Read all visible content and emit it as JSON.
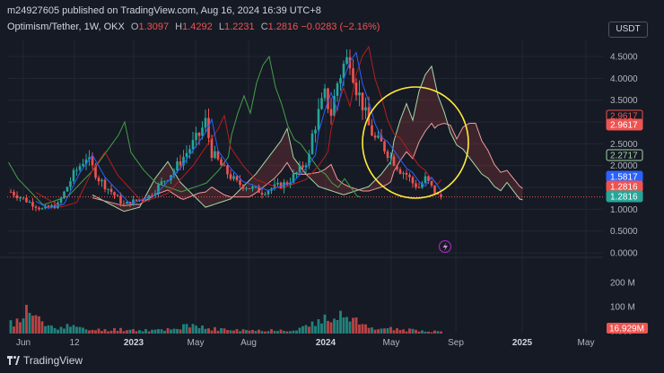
{
  "header": {
    "published_line": "m24927605 published on TradingView.com, Aug 16, 2024 16:39 UTC+8"
  },
  "legend": {
    "symbol": "Optimism/Tether, 1W, OKX",
    "open_label": "O",
    "open": "1.3097",
    "high_label": "H",
    "high": "1.4292",
    "low_label": "L",
    "low": "1.2231",
    "close_label": "C",
    "close": "1.2816",
    "change": "−0.0283 (−2.16%)"
  },
  "currency_button": "USDT",
  "footer": {
    "brand": "TradingView"
  },
  "colors": {
    "background": "#161a25",
    "up": "#26a69a",
    "down": "#ef5350",
    "conversion": "#2962ff",
    "base": "#b71c1c",
    "lagging": "#43a047",
    "span_a": "#a5d6a7",
    "span_b": "#ef9a9a",
    "highlight": "#ffeb3b"
  },
  "chart_data": {
    "type": "candlestick",
    "price_axis": {
      "ticks": [
        "4.5000",
        "4.0000",
        "3.5000",
        "3.0000",
        "2.5000",
        "2.0000",
        "1.5000",
        "1.0000",
        "0.5000",
        "0.0000"
      ]
    },
    "volume_axis": {
      "ticks": [
        "200 M",
        "100 M",
        "0.000"
      ]
    },
    "time_axis": {
      "ticks": [
        "Jun",
        "12",
        "2023",
        "May",
        "Aug",
        "2024",
        "May",
        "Sep",
        "2025",
        "May"
      ]
    },
    "price_labels": [
      {
        "text": "2.9617",
        "style": "outline-red"
      },
      {
        "text": "2.9617",
        "style": "solid-red"
      },
      {
        "text": "2.2717",
        "style": "outline-green"
      },
      {
        "text": "1.5817",
        "style": "solid-blue"
      },
      {
        "text": "1.2816",
        "style": "solid-red"
      },
      {
        "text": "1.2816",
        "style": "solid-green"
      }
    ],
    "volume_label": "16.929M",
    "last_close": 1.2816,
    "annotation": "yellow ellipse around the 2024 decline",
    "close_path": [
      [
        0,
        1.4
      ],
      [
        5,
        1.2
      ],
      [
        10,
        1.0
      ],
      [
        15,
        1.1
      ],
      [
        20,
        1.8
      ],
      [
        24,
        2.2
      ],
      [
        28,
        1.7
      ],
      [
        32,
        1.4
      ],
      [
        36,
        1.1
      ],
      [
        40,
        1.2
      ],
      [
        44,
        1.3
      ],
      [
        48,
        1.6
      ],
      [
        52,
        1.9
      ],
      [
        56,
        2.3
      ],
      [
        60,
        2.7
      ],
      [
        62,
        3.0
      ],
      [
        64,
        2.3
      ],
      [
        68,
        1.9
      ],
      [
        72,
        1.6
      ],
      [
        76,
        1.5
      ],
      [
        80,
        1.4
      ],
      [
        84,
        1.5
      ],
      [
        88,
        1.6
      ],
      [
        92,
        1.9
      ],
      [
        95,
        2.2
      ],
      [
        96,
        2.7
      ],
      [
        98,
        3.2
      ],
      [
        100,
        3.6
      ],
      [
        102,
        3.2
      ],
      [
        104,
        3.9
      ],
      [
        106,
        4.3
      ],
      [
        108,
        4.5
      ],
      [
        110,
        3.8
      ],
      [
        112,
        3.4
      ],
      [
        114,
        2.9
      ],
      [
        116,
        2.6
      ],
      [
        118,
        2.5
      ],
      [
        120,
        2.3
      ],
      [
        122,
        2.1
      ],
      [
        124,
        1.9
      ],
      [
        126,
        1.8
      ],
      [
        128,
        1.6
      ],
      [
        130,
        1.5
      ],
      [
        132,
        1.7
      ],
      [
        134,
        1.5
      ],
      [
        136,
        1.3
      ],
      [
        137,
        1.28
      ]
    ],
    "volume_profile": [
      [
        0,
        40
      ],
      [
        3,
        55
      ],
      [
        5,
        90
      ],
      [
        8,
        70
      ],
      [
        10,
        40
      ],
      [
        14,
        25
      ],
      [
        18,
        35
      ],
      [
        22,
        20
      ],
      [
        26,
        15
      ],
      [
        30,
        15
      ],
      [
        34,
        18
      ],
      [
        40,
        15
      ],
      [
        46,
        14
      ],
      [
        52,
        22
      ],
      [
        56,
        30
      ],
      [
        60,
        25
      ],
      [
        64,
        20
      ],
      [
        70,
        15
      ],
      [
        76,
        12
      ],
      [
        82,
        14
      ],
      [
        90,
        16
      ],
      [
        96,
        35
      ],
      [
        100,
        55
      ],
      [
        104,
        90
      ],
      [
        108,
        60
      ],
      [
        112,
        35
      ],
      [
        116,
        25
      ],
      [
        120,
        20
      ],
      [
        126,
        15
      ],
      [
        130,
        12
      ],
      [
        134,
        10
      ],
      [
        137,
        10
      ]
    ]
  }
}
